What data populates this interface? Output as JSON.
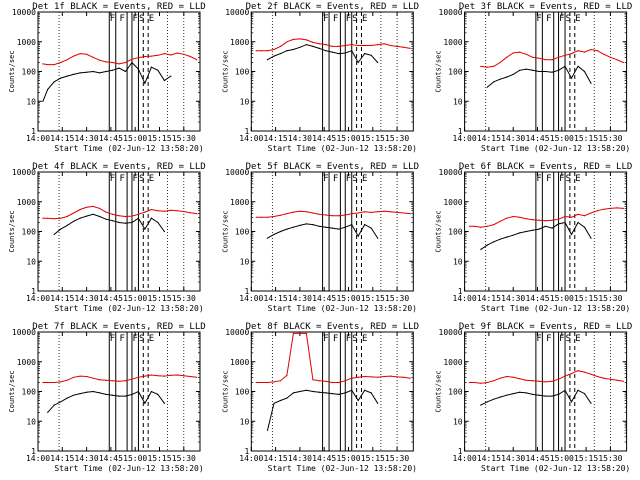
{
  "figure": {
    "ytitle": "Counts/sec",
    "xtitle": "Start Time (02-Jun-12 13:58:20)",
    "colors": {
      "events": "#000000",
      "lld": "#e00000",
      "background": "#ffffff"
    }
  },
  "chart_data": [
    {
      "type": "line",
      "title": "Det 1f BLACK = Events, RED = LLD",
      "xlabel": "Start Time (02-Jun-12 13:58:20)",
      "ylabel": "Counts/sec",
      "xlim": [
        "14:00",
        "15:40"
      ],
      "ylim": [
        1,
        10000
      ],
      "yscale": "log",
      "x_ticks": [
        "14:00",
        "14:15",
        "14:30",
        "14:45",
        "15:00",
        "15:15",
        "15:30"
      ],
      "y_ticks": [
        "1",
        "10",
        "100",
        "1000",
        "10000"
      ],
      "x": [
        "14:03",
        "14:06",
        "14:10",
        "14:14",
        "14:18",
        "14:22",
        "14:26",
        "14:30",
        "14:34",
        "14:38",
        "14:42",
        "14:46",
        "14:50",
        "14:54",
        "14:58",
        "15:02",
        "15:06",
        "15:10",
        "15:14",
        "15:18",
        "15:22",
        "15:26",
        "15:30",
        "15:34",
        "15:38"
      ],
      "series": [
        {
          "name": "Events",
          "color": "#000000",
          "values": [
            10,
            25,
            45,
            60,
            70,
            80,
            90,
            95,
            100,
            90,
            100,
            110,
            130,
            100,
            200,
            120,
            40,
            140,
            110,
            50,
            70,
            null,
            null,
            null,
            null
          ]
        },
        {
          "name": "LLD",
          "color": "#e00000",
          "values": [
            180,
            170,
            170,
            200,
            250,
            330,
            400,
            380,
            300,
            240,
            210,
            200,
            180,
            200,
            260,
            290,
            320,
            330,
            350,
            400,
            360,
            420,
            380,
            320,
            250
          ]
        }
      ],
      "flare_markers": [
        "F",
        "F",
        "F",
        "S",
        "E"
      ]
    },
    {
      "type": "line",
      "title": "Det 2f BLACK = Events, RED = LLD",
      "xlabel": "Start Time (02-Jun-12 13:58:20)",
      "ylabel": "Counts/sec",
      "xlim": [
        "14:00",
        "15:40"
      ],
      "ylim": [
        1,
        10000
      ],
      "yscale": "log",
      "x_ticks": [
        "14:00",
        "14:15",
        "14:30",
        "14:45",
        "15:00",
        "15:15",
        "15:30"
      ],
      "y_ticks": [
        "1",
        "10",
        "100",
        "1000",
        "10000"
      ],
      "x": [
        "14:03",
        "14:06",
        "14:10",
        "14:14",
        "14:18",
        "14:22",
        "14:26",
        "14:30",
        "14:34",
        "14:38",
        "14:42",
        "14:46",
        "14:50",
        "14:54",
        "14:58",
        "15:02",
        "15:06",
        "15:10",
        "15:14",
        "15:18",
        "15:22",
        "15:26",
        "15:30",
        "15:34",
        "15:38"
      ],
      "series": [
        {
          "name": "Events",
          "color": "#000000",
          "values": [
            null,
            null,
            250,
            330,
            400,
            500,
            550,
            650,
            800,
            700,
            600,
            500,
            450,
            400,
            420,
            500,
            200,
            400,
            350,
            200,
            null,
            null,
            null,
            null,
            null
          ]
        },
        {
          "name": "LLD",
          "color": "#e00000",
          "values": [
            500,
            500,
            500,
            550,
            700,
            1000,
            1200,
            1250,
            1150,
            950,
            850,
            800,
            700,
            700,
            750,
            800,
            750,
            750,
            750,
            800,
            850,
            750,
            700,
            650,
            600
          ]
        }
      ],
      "flare_markers": [
        "F",
        "F",
        "F",
        "S",
        "E"
      ]
    },
    {
      "type": "line",
      "title": "Det 3f BLACK = Events, RED = LLD",
      "xlabel": "Start Time (02-Jun-12 13:58:20)",
      "ylabel": "Counts/sec",
      "xlim": [
        "14:00",
        "15:40"
      ],
      "ylim": [
        1,
        10000
      ],
      "yscale": "log",
      "x_ticks": [
        "14:00",
        "14:15",
        "14:30",
        "14:45",
        "15:00",
        "15:15",
        "15:30"
      ],
      "y_ticks": [
        "1",
        "10",
        "100",
        "1000",
        "10000"
      ],
      "x": [
        "14:03",
        "14:06",
        "14:10",
        "14:14",
        "14:18",
        "14:22",
        "14:26",
        "14:30",
        "14:34",
        "14:38",
        "14:42",
        "14:46",
        "14:50",
        "14:54",
        "14:58",
        "15:02",
        "15:06",
        "15:10",
        "15:14",
        "15:18",
        "15:22",
        "15:26",
        "15:30",
        "15:34",
        "15:38"
      ],
      "series": [
        {
          "name": "Events",
          "color": "#000000",
          "values": [
            null,
            null,
            null,
            30,
            45,
            55,
            65,
            80,
            110,
            120,
            110,
            100,
            100,
            95,
            110,
            150,
            60,
            150,
            100,
            40,
            null,
            null,
            null,
            null,
            null
          ]
        },
        {
          "name": "LLD",
          "color": "#e00000",
          "values": [
            null,
            null,
            150,
            140,
            150,
            200,
            300,
            420,
            450,
            380,
            300,
            280,
            250,
            250,
            300,
            350,
            400,
            500,
            450,
            550,
            500,
            380,
            300,
            250,
            200
          ]
        }
      ],
      "flare_markers": [
        "F",
        "F",
        "F",
        "S",
        "E"
      ]
    },
    {
      "type": "line",
      "title": "Det 4f BLACK = Events, RED = LLD",
      "xlabel": "Start Time (02-Jun-12 13:58:20)",
      "ylabel": "Counts/sec",
      "xlim": [
        "14:00",
        "15:40"
      ],
      "ylim": [
        1,
        10000
      ],
      "yscale": "log",
      "x_ticks": [
        "14:00",
        "14:15",
        "14:30",
        "14:45",
        "15:00",
        "15:15",
        "15:30"
      ],
      "y_ticks": [
        "1",
        "10",
        "100",
        "1000",
        "10000"
      ],
      "x": [
        "14:03",
        "14:06",
        "14:10",
        "14:14",
        "14:18",
        "14:22",
        "14:26",
        "14:30",
        "14:34",
        "14:38",
        "14:42",
        "14:46",
        "14:50",
        "14:54",
        "14:58",
        "15:02",
        "15:06",
        "15:10",
        "15:14",
        "15:18",
        "15:22",
        "15:26",
        "15:30",
        "15:34",
        "15:38"
      ],
      "series": [
        {
          "name": "Events",
          "color": "#000000",
          "values": [
            null,
            null,
            80,
            120,
            160,
            220,
            280,
            330,
            380,
            320,
            260,
            230,
            200,
            190,
            200,
            280,
            120,
            280,
            200,
            100,
            null,
            null,
            null,
            null,
            null
          ]
        },
        {
          "name": "LLD",
          "color": "#e00000",
          "values": [
            280,
            280,
            270,
            280,
            320,
            420,
            550,
            650,
            700,
            600,
            450,
            380,
            340,
            320,
            330,
            380,
            450,
            550,
            500,
            480,
            520,
            500,
            470,
            430,
            400
          ]
        }
      ],
      "flare_markers": [
        "F",
        "F",
        "F",
        "S",
        "E"
      ]
    },
    {
      "type": "line",
      "title": "Det 5f BLACK = Events, RED = LLD",
      "xlabel": "Start Time (02-Jun-12 13:58:20)",
      "ylabel": "Counts/sec",
      "xlim": [
        "14:00",
        "15:40"
      ],
      "ylim": [
        1,
        10000
      ],
      "yscale": "log",
      "x_ticks": [
        "14:00",
        "14:15",
        "14:30",
        "14:45",
        "15:00",
        "15:15",
        "15:30"
      ],
      "y_ticks": [
        "1",
        "10",
        "100",
        "1000",
        "10000"
      ],
      "x": [
        "14:03",
        "14:06",
        "14:10",
        "14:14",
        "14:18",
        "14:22",
        "14:26",
        "14:30",
        "14:34",
        "14:38",
        "14:42",
        "14:46",
        "14:50",
        "14:54",
        "14:58",
        "15:02",
        "15:06",
        "15:10",
        "15:14",
        "15:18",
        "15:22",
        "15:26",
        "15:30",
        "15:34",
        "15:38"
      ],
      "series": [
        {
          "name": "Events",
          "color": "#000000",
          "values": [
            null,
            null,
            60,
            80,
            100,
            120,
            140,
            160,
            180,
            170,
            150,
            140,
            130,
            120,
            140,
            170,
            70,
            170,
            130,
            60,
            null,
            null,
            null,
            null,
            null
          ]
        },
        {
          "name": "LLD",
          "color": "#e00000",
          "values": [
            300,
            300,
            300,
            320,
            350,
            400,
            450,
            480,
            460,
            420,
            380,
            360,
            340,
            340,
            360,
            400,
            420,
            460,
            440,
            460,
            480,
            460,
            440,
            420,
            400
          ]
        }
      ],
      "flare_markers": [
        "F",
        "F",
        "F",
        "S",
        "E"
      ]
    },
    {
      "type": "line",
      "title": "Det 6f BLACK = Events, RED = LLD",
      "xlabel": "Start Time (02-Jun-12 13:58:20)",
      "ylabel": "Counts/sec",
      "xlim": [
        "14:00",
        "15:40"
      ],
      "ylim": [
        1,
        10000
      ],
      "yscale": "log",
      "x_ticks": [
        "14:00",
        "14:15",
        "14:30",
        "14:45",
        "15:00",
        "15:15",
        "15:30"
      ],
      "y_ticks": [
        "1",
        "10",
        "100",
        "1000",
        "10000"
      ],
      "x": [
        "14:03",
        "14:06",
        "14:10",
        "14:14",
        "14:18",
        "14:22",
        "14:26",
        "14:30",
        "14:34",
        "14:38",
        "14:42",
        "14:46",
        "14:50",
        "14:54",
        "14:58",
        "15:02",
        "15:06",
        "15:10",
        "15:14",
        "15:18",
        "15:22",
        "15:26",
        "15:30",
        "15:34",
        "15:38"
      ],
      "series": [
        {
          "name": "Events",
          "color": "#000000",
          "values": [
            null,
            null,
            25,
            35,
            45,
            55,
            65,
            75,
            90,
            100,
            110,
            120,
            150,
            130,
            180,
            200,
            80,
            200,
            140,
            60,
            null,
            null,
            null,
            null,
            null
          ]
        },
        {
          "name": "LLD",
          "color": "#e00000",
          "values": [
            150,
            150,
            140,
            150,
            170,
            220,
            280,
            320,
            300,
            270,
            250,
            240,
            230,
            240,
            260,
            320,
            300,
            380,
            340,
            420,
            500,
            560,
            600,
            620,
            600
          ]
        }
      ],
      "flare_markers": [
        "F",
        "F",
        "F",
        "S",
        "E"
      ]
    },
    {
      "type": "line",
      "title": "Det 7f BLACK = Events, RED = LLD",
      "xlabel": "Start Time (02-Jun-12 13:58:20)",
      "ylabel": "Counts/sec",
      "xlim": [
        "14:00",
        "15:40"
      ],
      "ylim": [
        1,
        10000
      ],
      "yscale": "log",
      "x_ticks": [
        "14:00",
        "14:15",
        "14:30",
        "14:45",
        "15:00",
        "15:15",
        "15:30"
      ],
      "y_ticks": [
        "1",
        "10",
        "100",
        "1000",
        "10000"
      ],
      "x": [
        "14:03",
        "14:06",
        "14:10",
        "14:14",
        "14:18",
        "14:22",
        "14:26",
        "14:30",
        "14:34",
        "14:38",
        "14:42",
        "14:46",
        "14:50",
        "14:54",
        "14:58",
        "15:02",
        "15:06",
        "15:10",
        "15:14",
        "15:18",
        "15:22",
        "15:26",
        "15:30",
        "15:34",
        "15:38"
      ],
      "series": [
        {
          "name": "Events",
          "color": "#000000",
          "values": [
            null,
            20,
            35,
            45,
            60,
            75,
            85,
            95,
            100,
            90,
            80,
            75,
            70,
            70,
            80,
            100,
            40,
            100,
            80,
            40,
            null,
            null,
            null,
            null,
            null
          ]
        },
        {
          "name": "LLD",
          "color": "#e00000",
          "values": [
            200,
            200,
            200,
            210,
            240,
            300,
            330,
            320,
            280,
            250,
            240,
            230,
            220,
            230,
            260,
            300,
            330,
            360,
            340,
            330,
            350,
            360,
            340,
            320,
            300
          ]
        }
      ],
      "flare_markers": [
        "F",
        "F",
        "F",
        "S",
        "E"
      ]
    },
    {
      "type": "line",
      "title": "Det 8f BLACK = Events, RED = LLD",
      "xlabel": "Start Time (02-Jun-12 13:58:20)",
      "ylabel": "Counts/sec",
      "xlim": [
        "14:00",
        "15:40"
      ],
      "ylim": [
        1,
        10000
      ],
      "yscale": "log",
      "x_ticks": [
        "14:00",
        "14:15",
        "14:30",
        "14:45",
        "15:00",
        "15:15",
        "15:30"
      ],
      "y_ticks": [
        "1",
        "10",
        "100",
        "1000",
        "10000"
      ],
      "x": [
        "14:03",
        "14:06",
        "14:10",
        "14:14",
        "14:18",
        "14:22",
        "14:26",
        "14:30",
        "14:34",
        "14:38",
        "14:42",
        "14:46",
        "14:50",
        "14:54",
        "14:58",
        "15:02",
        "15:06",
        "15:10",
        "15:14",
        "15:18",
        "15:22",
        "15:26",
        "15:30",
        "15:34",
        "15:38"
      ],
      "series": [
        {
          "name": "Events",
          "color": "#000000",
          "values": [
            null,
            null,
            5,
            40,
            50,
            60,
            90,
            100,
            110,
            100,
            95,
            90,
            85,
            80,
            90,
            110,
            50,
            110,
            90,
            40,
            null,
            null,
            null,
            null,
            null
          ]
        },
        {
          "name": "LLD",
          "color": "#e00000",
          "values": [
            200,
            200,
            200,
            210,
            230,
            350,
            9000,
            9000,
            9000,
            250,
            230,
            220,
            200,
            200,
            230,
            280,
            300,
            320,
            310,
            300,
            320,
            330,
            310,
            300,
            280
          ]
        }
      ],
      "flare_markers": [
        "F",
        "F",
        "F",
        "S",
        "E"
      ]
    },
    {
      "type": "line",
      "title": "Det 9f BLACK = Events, RED = LLD",
      "xlabel": "Start Time (02-Jun-12 13:58:20)",
      "ylabel": "Counts/sec",
      "xlim": [
        "14:00",
        "15:40"
      ],
      "ylim": [
        1,
        10000
      ],
      "yscale": "log",
      "x_ticks": [
        "14:00",
        "14:15",
        "14:30",
        "14:45",
        "15:00",
        "15:15",
        "15:30"
      ],
      "y_ticks": [
        "1",
        "10",
        "100",
        "1000",
        "10000"
      ],
      "x": [
        "14:03",
        "14:06",
        "14:10",
        "14:14",
        "14:18",
        "14:22",
        "14:26",
        "14:30",
        "14:34",
        "14:38",
        "14:42",
        "14:46",
        "14:50",
        "14:54",
        "14:58",
        "15:02",
        "15:06",
        "15:10",
        "15:14",
        "15:18",
        "15:22",
        "15:26",
        "15:30",
        "15:34",
        "15:38"
      ],
      "series": [
        {
          "name": "Events",
          "color": "#000000",
          "values": [
            null,
            null,
            35,
            45,
            55,
            65,
            75,
            85,
            95,
            90,
            80,
            75,
            70,
            70,
            80,
            110,
            45,
            110,
            85,
            40,
            null,
            null,
            null,
            null,
            null
          ]
        },
        {
          "name": "LLD",
          "color": "#e00000",
          "values": [
            200,
            200,
            190,
            200,
            230,
            280,
            320,
            300,
            270,
            240,
            230,
            220,
            210,
            220,
            260,
            330,
            400,
            500,
            450,
            380,
            320,
            280,
            260,
            240,
            220
          ]
        }
      ],
      "flare_markers": [
        "F",
        "F",
        "F",
        "S",
        "E"
      ]
    }
  ]
}
